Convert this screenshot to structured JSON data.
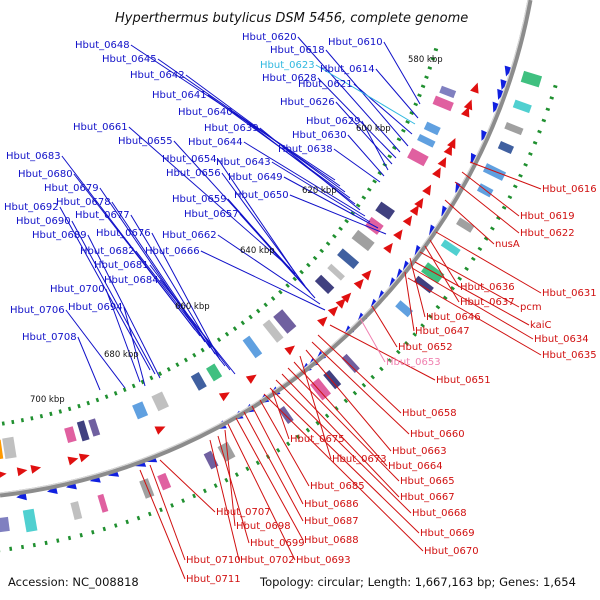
{
  "title": "Hyperthermus butylicus DSM 5456, complete genome",
  "accession": "Accession: NC_008818",
  "summary": "Topology: circular; Length: 1,667,163 bp; Genes: 1,654",
  "colors": {
    "forward_label": "#1010c8",
    "reverse_label": "#d01010",
    "rna_label": "#30b8e0",
    "pink_label": "#f080b0",
    "backbone": "#8c8c8c",
    "forward_feature": "#1020e0",
    "reverse_feature": "#e01010"
  },
  "scale_labels": [
    "580 kbp",
    "600 kbp",
    "620 kbp",
    "640 kbp",
    "660 kbp",
    "680 kbp",
    "700 kbp"
  ],
  "forward_genes": [
    "Hbut_0648",
    "Hbut_0645",
    "Hbut_0642",
    "Hbut_0641",
    "Hbut_0640",
    "Hbut_0639",
    "Hbut_0644",
    "Hbut_0643",
    "Hbut_0649",
    "Hbut_0650",
    "Hbut_0620",
    "Hbut_0618",
    "Hbut_0610",
    "Hbut_0614",
    "Hbut_0621",
    "Hbut_0628",
    "Hbut_0626",
    "Hbut_0629",
    "Hbut_0630",
    "Hbut_0638",
    "Hbut_0661",
    "Hbut_0655",
    "Hbut_0654",
    "Hbut_0656",
    "Hbut_0659",
    "Hbut_0657",
    "Hbut_0662",
    "Hbut_0666",
    "Hbut_0683",
    "Hbut_0680",
    "Hbut_0679",
    "Hbut_0678",
    "Hbut_0692",
    "Hbut_0677",
    "Hbut_0690",
    "Hbut_0676",
    "Hbut_0689",
    "Hbut_0682",
    "Hbut_0681",
    "Hbut_0684",
    "Hbut_0700",
    "Hbut_0706",
    "Hbut_0694",
    "Hbut_0708"
  ],
  "rna_genes": [
    "Hbut_0623"
  ],
  "reverse_genes": [
    "Hbut_0616",
    "Hbut_0619",
    "Hbut_0622",
    "nusA",
    "Hbut_0631",
    "Hbut_0636",
    "Hbut_0637",
    "pcm",
    "Hbut_0646",
    "kaiC",
    "Hbut_0634",
    "Hbut_0647",
    "Hbut_0635",
    "Hbut_0652",
    "Hbut_0651",
    "Hbut_0658",
    "Hbut_0660",
    "Hbut_0675",
    "Hbut_0663",
    "Hbut_0673",
    "Hbut_0664",
    "Hbut_0665",
    "Hbut_0685",
    "Hbut_0667",
    "Hbut_0686",
    "Hbut_0668",
    "Hbut_0707",
    "Hbut_0687",
    "Hbut_0698",
    "Hbut_0669",
    "Hbut_0688",
    "Hbut_0699",
    "Hbut_0670",
    "Hbut_0710",
    "Hbut_0702",
    "Hbut_0693",
    "Hbut_0711"
  ],
  "pink_genes": [
    "Hbut_0653"
  ]
}
